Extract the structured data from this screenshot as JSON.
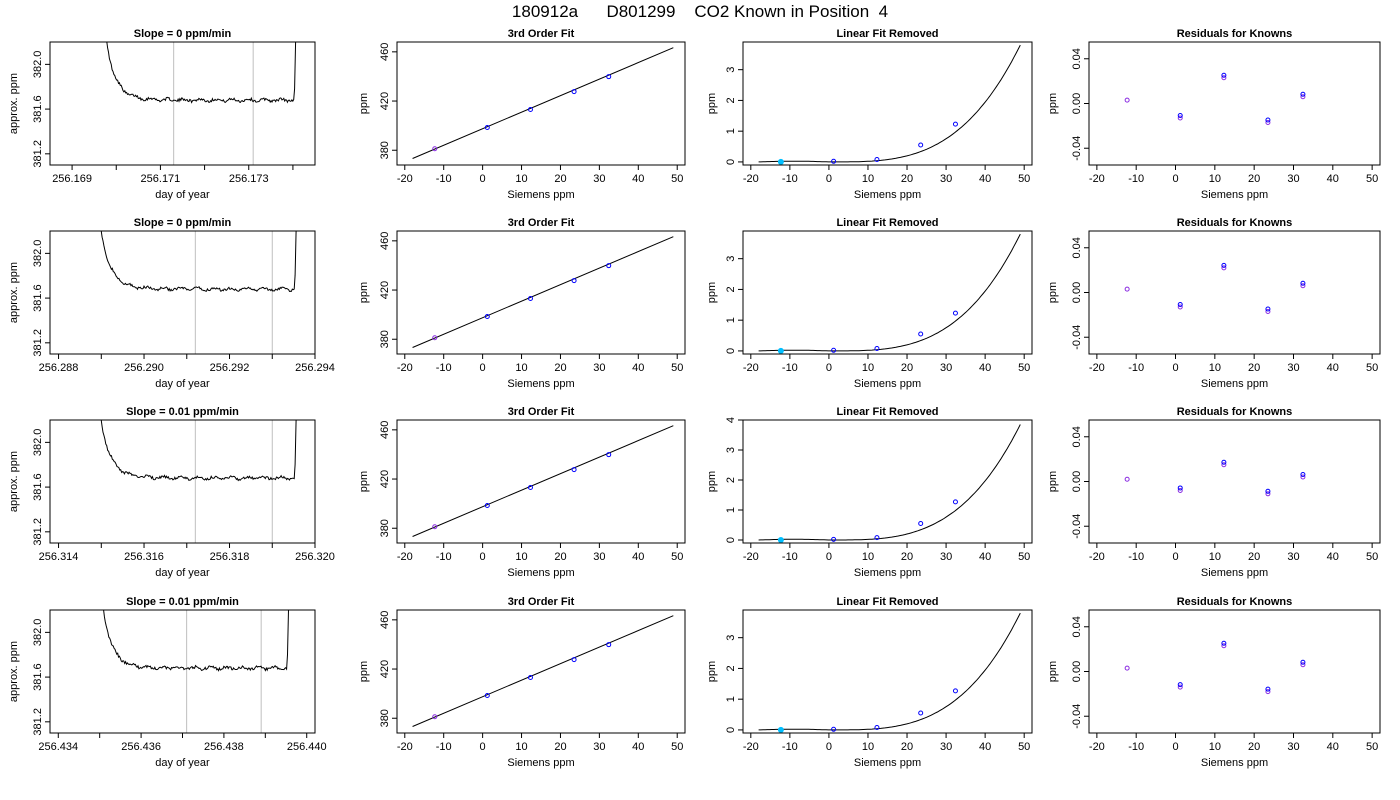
{
  "figure": {
    "title": "180912a      D801299    CO2 Known in Position  4"
  },
  "labels": {
    "xlab_time": "day of year",
    "ylab_time": "approx. ppm",
    "xlab_siemens": "Siemens ppm",
    "ylab_ppm": "ppm",
    "title_fit": "3rd Order Fit",
    "title_lin": "Linear Fit Removed",
    "title_res": "Residuals for Knowns"
  },
  "colors": {
    "trace": "#000000",
    "window_line": "#bebebe",
    "known_point": "#0000ff",
    "known_point_alt": "#8a2be2",
    "current_known": "#00bfff"
  },
  "chart_data": [
    {
      "row": 1,
      "slope_title": "Slope =  0  ppm/min",
      "time_series": {
        "type": "line",
        "xlim": [
          256.1685,
          256.1745
        ],
        "xticks": [
          256.169,
          256.17,
          256.171,
          256.172,
          256.173,
          256.174
        ],
        "xtick_labels": [
          "256.169",
          "",
          "256.171",
          "",
          "256.173",
          ""
        ],
        "ylim": [
          381.1,
          382.2
        ],
        "yticks": [
          381.2,
          381.6,
          382.0
        ],
        "ytick_labels": [
          "381.2",
          "381.6",
          "382.0"
        ],
        "trace_start": 256.1696,
        "trace_end": 256.1741,
        "plateau": 381.68,
        "window": [
          256.1713,
          256.1731
        ]
      },
      "fit": {
        "type": "scatter",
        "x": [
          -12.3,
          1.2,
          12.3,
          23.5,
          32.4
        ],
        "y": [
          381.2,
          398.5,
          413.1,
          427.7,
          439.8
        ]
      },
      "linear_removed": {
        "type": "scatter",
        "ylim": [
          -0.1,
          3.9
        ],
        "yticks": [
          0,
          1,
          2,
          3
        ],
        "x": [
          -12.3,
          1.2,
          12.3,
          23.5,
          32.4
        ],
        "y": [
          0.0,
          0.02,
          0.08,
          0.55,
          1.23
        ],
        "curve_scale": 3.8
      },
      "residuals": {
        "type": "scatter",
        "x": [
          -12.3,
          1.2,
          12.3,
          23.5,
          32.4
        ],
        "y": [
          0.003,
          -0.013,
          0.023,
          -0.017,
          0.006
        ]
      }
    },
    {
      "row": 2,
      "slope_title": "Slope =  0  ppm/min",
      "time_series": {
        "type": "line",
        "xlim": [
          256.2878,
          256.294
        ],
        "xticks": [
          256.288,
          256.289,
          256.29,
          256.291,
          256.292,
          256.293,
          256.294
        ],
        "xtick_labels": [
          "256.288",
          "",
          "256.290",
          "",
          "256.292",
          "",
          "256.294"
        ],
        "ylim": [
          381.1,
          382.2
        ],
        "yticks": [
          381.2,
          381.6,
          382.0
        ],
        "ytick_labels": [
          "381.2",
          "381.6",
          "382.0"
        ],
        "trace_start": 256.2888,
        "trace_end": 256.2936,
        "plateau": 381.68,
        "window": [
          256.2912,
          256.293
        ]
      },
      "fit": {
        "type": "scatter",
        "x": [
          -12.3,
          1.2,
          12.3,
          23.5,
          32.4
        ],
        "y": [
          381.2,
          398.5,
          413.1,
          427.7,
          439.8
        ]
      },
      "linear_removed": {
        "type": "scatter",
        "ylim": [
          -0.1,
          3.9
        ],
        "yticks": [
          0,
          1,
          2,
          3
        ],
        "x": [
          -12.3,
          1.2,
          12.3,
          23.5,
          32.4
        ],
        "y": [
          0.0,
          0.02,
          0.08,
          0.55,
          1.23
        ],
        "curve_scale": 3.8
      },
      "residuals": {
        "type": "scatter",
        "x": [
          -12.3,
          1.2,
          12.3,
          23.5,
          32.4
        ],
        "y": [
          0.003,
          -0.013,
          0.022,
          -0.017,
          0.006
        ]
      }
    },
    {
      "row": 3,
      "slope_title": "Slope =  0.01  ppm/min",
      "time_series": {
        "type": "line",
        "xlim": [
          256.3138,
          256.32
        ],
        "xticks": [
          256.314,
          256.315,
          256.316,
          256.317,
          256.318,
          256.319,
          256.32
        ],
        "xtick_labels": [
          "256.314",
          "",
          "256.316",
          "",
          "256.318",
          "",
          "256.320"
        ],
        "ylim": [
          381.1,
          382.2
        ],
        "yticks": [
          381.2,
          381.6,
          382.0
        ],
        "ytick_labels": [
          "381.2",
          "381.6",
          "382.0"
        ],
        "trace_start": 256.3148,
        "trace_end": 256.3196,
        "plateau": 381.68,
        "window": [
          256.3172,
          256.319
        ]
      },
      "fit": {
        "type": "scatter",
        "x": [
          -12.3,
          1.2,
          12.3,
          23.5,
          32.4
        ],
        "y": [
          381.2,
          398.5,
          413.1,
          427.7,
          439.8
        ]
      },
      "linear_removed": {
        "type": "scatter",
        "ylim": [
          -0.1,
          4.0
        ],
        "yticks": [
          0,
          1,
          2,
          3,
          4
        ],
        "x": [
          -12.3,
          1.2,
          12.3,
          23.5,
          32.4
        ],
        "y": [
          0.0,
          0.02,
          0.08,
          0.55,
          1.27
        ],
        "curve_scale": 3.85
      },
      "residuals": {
        "type": "scatter",
        "x": [
          -12.3,
          1.2,
          12.3,
          23.5,
          32.4
        ],
        "y": [
          0.002,
          -0.008,
          0.015,
          -0.011,
          0.004
        ]
      }
    },
    {
      "row": 4,
      "slope_title": "Slope =  0.01  ppm/min",
      "time_series": {
        "type": "line",
        "xlim": [
          256.4338,
          256.4402
        ],
        "xticks": [
          256.434,
          256.435,
          256.436,
          256.437,
          256.438,
          256.439,
          256.44
        ],
        "xtick_labels": [
          "256.434",
          "",
          "256.436",
          "",
          "256.438",
          "",
          "256.440"
        ],
        "ylim": [
          381.1,
          382.2
        ],
        "yticks": [
          381.2,
          381.6,
          382.0
        ],
        "ytick_labels": [
          "381.2",
          "381.6",
          "382.0"
        ],
        "trace_start": 256.4349,
        "trace_end": 256.4396,
        "plateau": 381.68,
        "window": [
          256.4371,
          256.4389
        ]
      },
      "fit": {
        "type": "scatter",
        "x": [
          -12.3,
          1.2,
          12.3,
          23.5,
          32.4
        ],
        "y": [
          381.2,
          398.5,
          413.1,
          427.7,
          439.8
        ]
      },
      "linear_removed": {
        "type": "scatter",
        "ylim": [
          -0.1,
          3.9
        ],
        "yticks": [
          0,
          1,
          2,
          3
        ],
        "x": [
          -12.3,
          1.2,
          12.3,
          23.5,
          32.4
        ],
        "y": [
          0.0,
          0.02,
          0.08,
          0.55,
          1.27
        ],
        "curve_scale": 3.8
      },
      "residuals": {
        "type": "scatter",
        "x": [
          -12.3,
          1.2,
          12.3,
          23.5,
          32.4
        ],
        "y": [
          0.003,
          -0.014,
          0.023,
          -0.018,
          0.006
        ]
      }
    }
  ],
  "shared_axes": {
    "siemens_xlim": [
      -22,
      52
    ],
    "siemens_xticks": [
      -20,
      -10,
      0,
      10,
      20,
      30,
      40,
      50
    ],
    "fit_ylim": [
      368,
      468
    ],
    "fit_yticks": [
      380,
      420,
      460
    ],
    "fit_line": {
      "x": [
        -18,
        49
      ],
      "y": [
        373.3,
        463.4
      ]
    },
    "res_ylim": [
      -0.055,
      0.055
    ],
    "res_yticks": [
      -0.04,
      0.0,
      0.04
    ],
    "res_ytick_labels": [
      "-0.04",
      "0.00",
      "0.04"
    ]
  }
}
